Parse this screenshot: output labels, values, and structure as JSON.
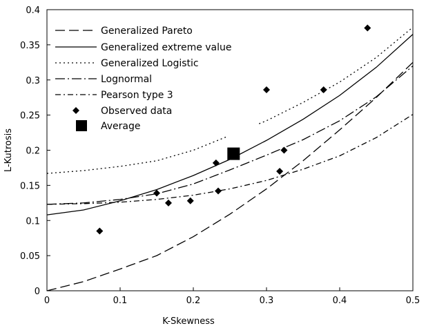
{
  "chart_data": {
    "type": "line",
    "xlabel": "K-Skewness",
    "ylabel": "L-Kutrosis",
    "xlim": [
      0,
      0.5
    ],
    "ylim": [
      0,
      0.4
    ],
    "x_ticks": [
      "0",
      "0.1",
      "0.2",
      "0.3",
      "0.4",
      "0.5"
    ],
    "y_ticks": [
      "0",
      "0.05",
      "0.1",
      "0.15",
      "0.2",
      "0.25",
      "0.3",
      "0.35",
      "0.4"
    ],
    "grid": false,
    "legend_position": "top-left",
    "series": [
      {
        "name": "Generalized Pareto",
        "style": "dashed",
        "x": [
          0,
          0.05,
          0.1,
          0.15,
          0.2,
          0.25,
          0.3,
          0.35,
          0.4,
          0.45,
          0.5
        ],
        "y": [
          0.0,
          0.013,
          0.031,
          0.05,
          0.077,
          0.109,
          0.145,
          0.185,
          0.229,
          0.275,
          0.325
        ]
      },
      {
        "name": "Generalized extreme value",
        "style": "solid",
        "x": [
          0,
          0.05,
          0.1,
          0.15,
          0.2,
          0.25,
          0.3,
          0.35,
          0.4,
          0.45,
          0.5
        ],
        "y": [
          0.108,
          0.115,
          0.128,
          0.144,
          0.164,
          0.187,
          0.214,
          0.244,
          0.278,
          0.318,
          0.365
        ]
      },
      {
        "name": "Generalized Logistic",
        "style": "dotted",
        "x": [
          0,
          0.05,
          0.1,
          0.15,
          0.2,
          0.25,
          0.3,
          0.35,
          0.4,
          0.45,
          0.5
        ],
        "y": [
          0.167,
          0.171,
          0.177,
          0.185,
          0.2,
          0.221,
          0.242,
          0.268,
          0.297,
          0.332,
          0.375
        ]
      },
      {
        "name": "Lognormal",
        "style": "dashdot-long",
        "x": [
          0,
          0.05,
          0.1,
          0.15,
          0.2,
          0.25,
          0.3,
          0.35,
          0.4,
          0.45,
          0.5
        ],
        "y": [
          0.123,
          0.125,
          0.13,
          0.138,
          0.152,
          0.172,
          0.193,
          0.215,
          0.242,
          0.276,
          0.32
        ]
      },
      {
        "name": "Pearson type 3",
        "style": "dashdot",
        "x": [
          0,
          0.05,
          0.1,
          0.15,
          0.2,
          0.25,
          0.3,
          0.35,
          0.4,
          0.45,
          0.5
        ],
        "y": [
          0.123,
          0.124,
          0.126,
          0.13,
          0.136,
          0.145,
          0.157,
          0.173,
          0.192,
          0.218,
          0.251
        ]
      }
    ],
    "observed": {
      "name": "Observed data",
      "x": [
        0.072,
        0.15,
        0.166,
        0.196,
        0.231,
        0.234,
        0.3,
        0.318,
        0.324,
        0.378,
        0.438
      ],
      "y": [
        0.085,
        0.139,
        0.125,
        0.128,
        0.182,
        0.142,
        0.286,
        0.17,
        0.2,
        0.286,
        0.374
      ]
    },
    "average": {
      "name": "Average",
      "x": 0.255,
      "y": 0.195
    }
  }
}
